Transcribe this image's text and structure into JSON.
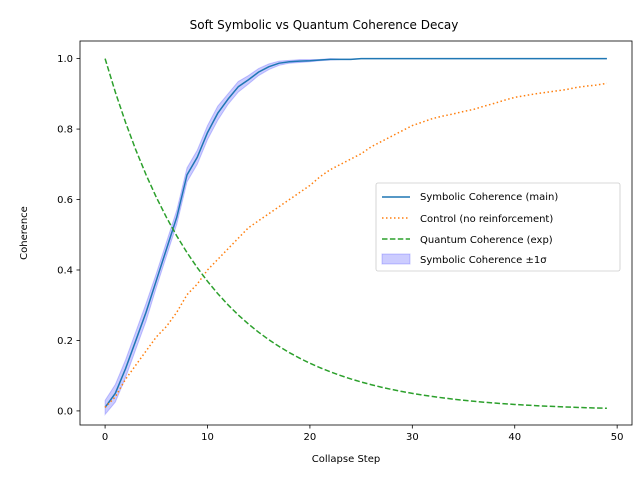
{
  "chart_data": {
    "type": "line",
    "title": "Soft Symbolic vs Quantum Coherence Decay",
    "xlabel": "Collapse Step",
    "ylabel": "Coherence",
    "xlim": [
      -2.45,
      51.45
    ],
    "ylim": [
      -0.04,
      1.05
    ],
    "xticks": [
      0,
      10,
      20,
      30,
      40,
      50
    ],
    "yticks": [
      0.0,
      0.2,
      0.4,
      0.6,
      0.8,
      1.0
    ],
    "xtick_labels": [
      "0",
      "10",
      "20",
      "30",
      "40",
      "50"
    ],
    "ytick_labels": [
      "0.0",
      "0.2",
      "0.4",
      "0.6",
      "0.8",
      "1.0"
    ],
    "grid": false,
    "legend_position": "center-right",
    "x": [
      0,
      1,
      2,
      3,
      4,
      5,
      6,
      7,
      8,
      9,
      10,
      11,
      12,
      13,
      14,
      15,
      16,
      17,
      18,
      19,
      20,
      21,
      22,
      23,
      24,
      25,
      26,
      27,
      28,
      29,
      30,
      31,
      32,
      33,
      34,
      35,
      36,
      37,
      38,
      39,
      40,
      41,
      42,
      43,
      44,
      45,
      46,
      47,
      48,
      49
    ],
    "series": [
      {
        "name": "Symbolic Coherence (main)",
        "style": "solid",
        "color": "#1f77b4",
        "values": [
          0.01,
          0.05,
          0.12,
          0.2,
          0.28,
          0.37,
          0.46,
          0.55,
          0.67,
          0.72,
          0.79,
          0.845,
          0.885,
          0.92,
          0.94,
          0.962,
          0.977,
          0.987,
          0.991,
          0.993,
          0.994,
          0.996,
          0.998,
          0.998,
          0.998,
          1.0,
          1.0,
          1.0,
          1.0,
          1.0,
          1.0,
          1.0,
          1.0,
          1.0,
          1.0,
          1.0,
          1.0,
          1.0,
          1.0,
          1.0,
          1.0,
          1.0,
          1.0,
          1.0,
          1.0,
          1.0,
          1.0,
          1.0,
          1.0,
          1.0
        ]
      },
      {
        "name": "Control (no reinforcement)",
        "style": "dotted",
        "color": "#ff7f0e",
        "values": [
          0.01,
          0.04,
          0.09,
          0.13,
          0.17,
          0.21,
          0.24,
          0.28,
          0.33,
          0.36,
          0.4,
          0.43,
          0.46,
          0.49,
          0.52,
          0.54,
          0.56,
          0.58,
          0.6,
          0.62,
          0.64,
          0.665,
          0.685,
          0.7,
          0.715,
          0.73,
          0.75,
          0.765,
          0.78,
          0.795,
          0.81,
          0.82,
          0.83,
          0.837,
          0.843,
          0.85,
          0.856,
          0.865,
          0.873,
          0.882,
          0.89,
          0.895,
          0.9,
          0.904,
          0.908,
          0.912,
          0.918,
          0.922,
          0.925,
          0.93
        ]
      },
      {
        "name": "Quantum Coherence (exp)",
        "style": "dashed",
        "color": "#2ca02c",
        "values": [
          1.0,
          0.9048,
          0.8187,
          0.7408,
          0.6703,
          0.6065,
          0.5488,
          0.4966,
          0.4493,
          0.4066,
          0.3679,
          0.3329,
          0.3012,
          0.2725,
          0.2466,
          0.2231,
          0.2019,
          0.1827,
          0.1653,
          0.1496,
          0.1353,
          0.1225,
          0.1108,
          0.1003,
          0.0907,
          0.0821,
          0.0743,
          0.0672,
          0.0608,
          0.055,
          0.0498,
          0.045,
          0.0408,
          0.0369,
          0.0334,
          0.0302,
          0.0273,
          0.0247,
          0.0224,
          0.0202,
          0.0183,
          0.0166,
          0.015,
          0.0136,
          0.0123,
          0.0111,
          0.0101,
          0.0091,
          0.0082,
          0.0074
        ]
      }
    ],
    "band": {
      "name": "Symbolic Coherence ±1σ",
      "color": "#0000ff",
      "sigma": [
        0.02,
        0.025,
        0.025,
        0.025,
        0.025,
        0.02,
        0.02,
        0.02,
        0.02,
        0.02,
        0.02,
        0.02,
        0.015,
        0.015,
        0.012,
        0.01,
        0.008,
        0.006,
        0.004,
        0.004,
        0.003,
        0.002,
        0.002,
        0.001,
        0.001,
        0,
        0,
        0,
        0,
        0,
        0,
        0,
        0,
        0,
        0,
        0,
        0,
        0,
        0,
        0,
        0,
        0,
        0,
        0,
        0,
        0,
        0,
        0,
        0,
        0
      ]
    }
  }
}
